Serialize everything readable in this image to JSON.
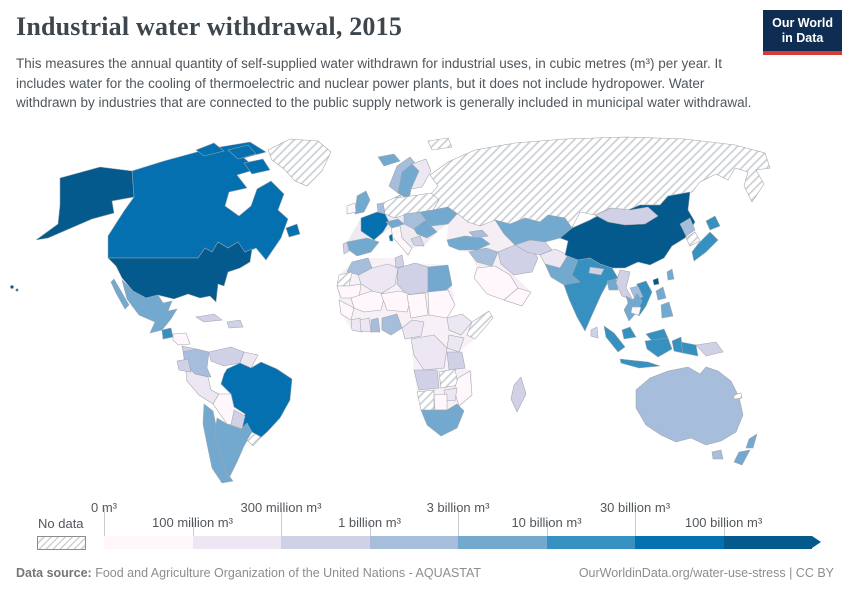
{
  "header": {
    "title": "Industrial water withdrawal, 2015",
    "subtitle": "This measures the annual quantity of self-supplied water withdrawn for industrial uses, in cubic metres (m³) per year. It includes water for the cooling of thermoelectric and nuclear power plants, but it does not include hydropower. Water withdrawn by industries that are connected to the public supply network is generally included in municipal water withdrawal.",
    "logo": {
      "line1": "Our World",
      "line2": "in Data",
      "bg_color": "#0f2d52",
      "accent_color": "#d73c32"
    }
  },
  "chart_data": {
    "type": "choropleth-map",
    "title": "Industrial water withdrawal, 2015",
    "unit": "m³ per year",
    "legend": {
      "no_data_label": "No data",
      "ticks": [
        "0 m³",
        "100 million m³",
        "300 million m³",
        "1 billion m³",
        "3 billion m³",
        "10 billion m³",
        "30 billion m³",
        "100 billion m³"
      ],
      "colors": [
        "#fff7fb",
        "#ece7f2",
        "#d0d1e6",
        "#a6bddb",
        "#74a9cf",
        "#3690c0",
        "#0570b0",
        "#045a8d"
      ],
      "tick_rows": [
        "top",
        "bottom",
        "top",
        "bottom",
        "top",
        "bottom",
        "top",
        "bottom"
      ]
    },
    "countries": {
      "United States": 7,
      "China": 7,
      "Canada": 6,
      "France": 6,
      "Brazil": 6,
      "Japan": 5,
      "India": 5,
      "Indonesia": 5,
      "Vietnam": 5,
      "Malaysia": 5,
      "Guatemala": 5,
      "Mexico": 4,
      "Argentina": 4,
      "Chile": 4,
      "Spain": 4,
      "United Kingdom": 4,
      "Sweden": 4,
      "Ukraine": 4,
      "Turkey": 4,
      "Kazakhstan": 4,
      "Pakistan": 4,
      "Bangladesh": 4,
      "Thailand": 4,
      "Philippines": 4,
      "Egypt": 4,
      "South Africa": 4,
      "New Zealand": 4,
      "Iceland": 4,
      "Austria": 4,
      "Romania": 4,
      "Taiwan": 4,
      "Norway": 3,
      "Australia": 3,
      "Colombia": 3,
      "Nigeria": 3,
      "Ghana": 3,
      "Morocco": 3,
      "North Korea": 3,
      "Laos": 3,
      "Iraq": 3,
      "Georgia": 3,
      "Hungary": 3,
      "Netherlands": 3,
      "Venezuela": 2,
      "Ecuador": 2,
      "Paraguay": 2,
      "Cuba": 2,
      "Iran": 2,
      "Uzbekistan": 2,
      "Mongolia": 2,
      "Myanmar": 2,
      "Sri Lanka": 2,
      "Madagascar": 2,
      "Libya": 2,
      "Tunisia": 2,
      "Angola": 2,
      "Tanzania": 2,
      "Papua New Guinea": 2,
      "Greece": 2,
      "Portugal": 2,
      "Denmark": 2,
      "Nepal": 2,
      "Costa Rica": 2,
      "Dominican Republic": 2,
      "Peru": 1,
      "Ethiopia": 1,
      "Kenya": 1,
      "Democratic Republic of Congo": 1,
      "Afghanistan": 1,
      "Zimbabwe": 1,
      "Ivory Coast": 1,
      "Finland": 1,
      "Cameroon": 1,
      "Algeria": 1,
      "Guyana": 1,
      "Guinea": 1,
      "Bolivia": 0,
      "Italy": 0,
      "Ireland": 0,
      "Saudi Arabia": 0,
      "Yemen": 0,
      "Mauritania": 0,
      "Mali": 0,
      "Niger": 0,
      "Chad": 0,
      "Sudan": 0,
      "Mozambique": 0,
      "Botswana": 0,
      "Honduras": 0,
      "Nicaragua": 0,
      "Cambodia": 0,
      "Senegal": 0,
      "Russia": "no_data",
      "Greenland": "no_data",
      "Germany": "no_data",
      "Poland": "no_data",
      "Belarus": "no_data",
      "South Korea": "no_data",
      "Uruguay": "no_data",
      "Namibia": "no_data",
      "Zambia": "no_data",
      "Somalia": "no_data",
      "Western Sahara": "no_data"
    }
  },
  "footer": {
    "source_label": "Data source:",
    "source_text": " Food and Agriculture Organization of the United Nations - AQUASTAT",
    "link_text": "OurWorldinData.org/water-use-stress | CC BY"
  }
}
